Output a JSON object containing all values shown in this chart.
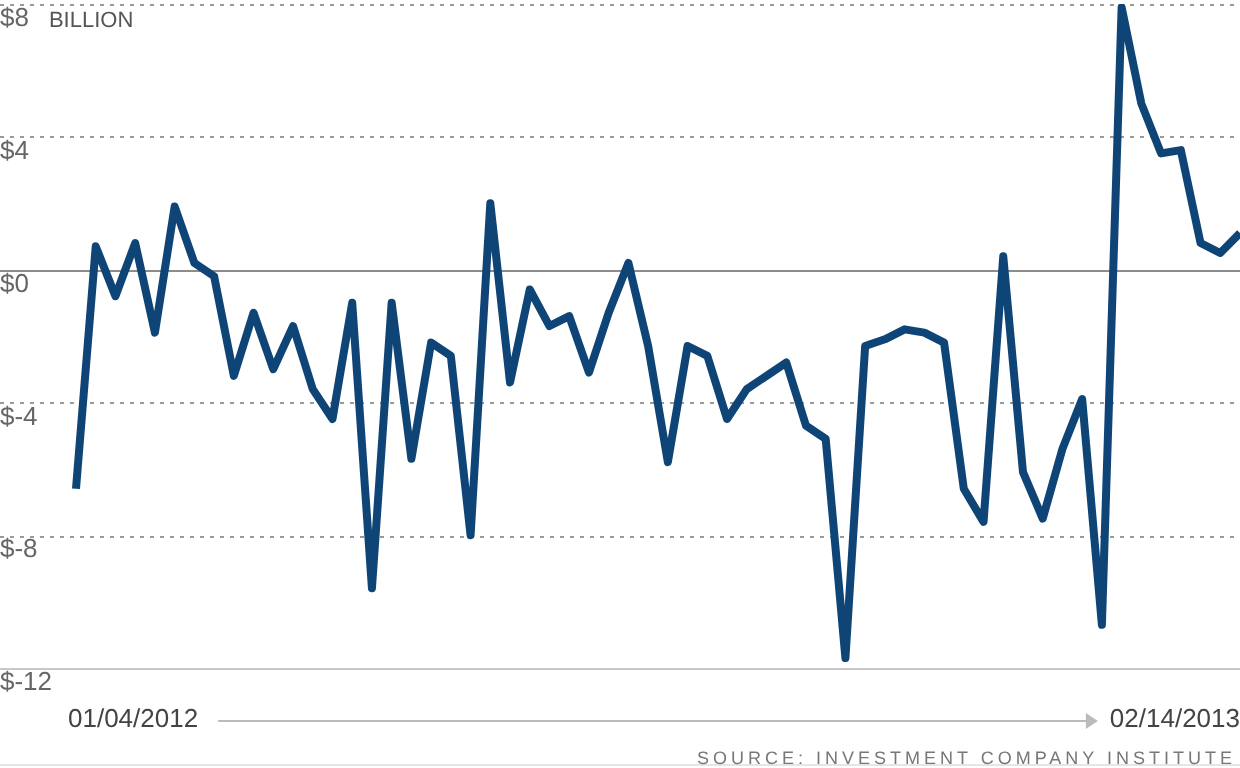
{
  "chart_data": {
    "type": "line",
    "ylabel": "BILLION",
    "categories": [
      null,
      null,
      null,
      null,
      null,
      null,
      null,
      null,
      null,
      null,
      null,
      null,
      null,
      null,
      null,
      null,
      null,
      null,
      null,
      null,
      null,
      null,
      null,
      null,
      null,
      null,
      null,
      null,
      null,
      null,
      null,
      null,
      null,
      null,
      null,
      null,
      null,
      null,
      null,
      null,
      null,
      null,
      null,
      null,
      null,
      null,
      null,
      null,
      null,
      null,
      null,
      null,
      null,
      null,
      null,
      null,
      null,
      null,
      null,
      null
    ],
    "series": [
      {
        "color": "#0f4576",
        "values": [
          -6.6,
          0.7,
          -0.8,
          0.8,
          -1.9,
          1.9,
          0.2,
          -0.2,
          -3.2,
          -1.3,
          -3.0,
          -1.7,
          -3.6,
          -4.5,
          -1.0,
          -9.6,
          -1.0,
          -5.7,
          -2.2,
          -2.6,
          -8.0,
          2.0,
          -3.4,
          -0.6,
          -1.7,
          -1.4,
          -3.1,
          -1.3,
          0.2,
          -2.3,
          -5.8,
          -2.3,
          -2.6,
          -4.5,
          -3.6,
          -3.2,
          -2.8,
          -4.7,
          -5.1,
          -11.7,
          -2.3,
          -2.1,
          -1.8,
          -1.9,
          -2.2,
          -6.6,
          -7.6,
          0.4,
          -6.1,
          -7.5,
          -5.4,
          -3.9,
          -10.7,
          7.9,
          5.0,
          3.5,
          3.6,
          0.8,
          0.5,
          1.1
        ]
      }
    ],
    "ylim": [
      -12,
      8
    ],
    "yticks": [
      {
        "value": 8,
        "label": "$8"
      },
      {
        "value": 4,
        "label": "$4"
      },
      {
        "value": 0,
        "label": "$0"
      },
      {
        "value": -4,
        "label": "$-4"
      },
      {
        "value": -8,
        "label": "$-8"
      },
      {
        "value": -12,
        "label": "$-12"
      }
    ],
    "grid": "y",
    "marker": "none",
    "line_style": "solid",
    "annotations": [
      "01/04/2012",
      "02/14/2013",
      "SOURCE: INVESTMENT COMPANY INSTITUTE"
    ]
  }
}
